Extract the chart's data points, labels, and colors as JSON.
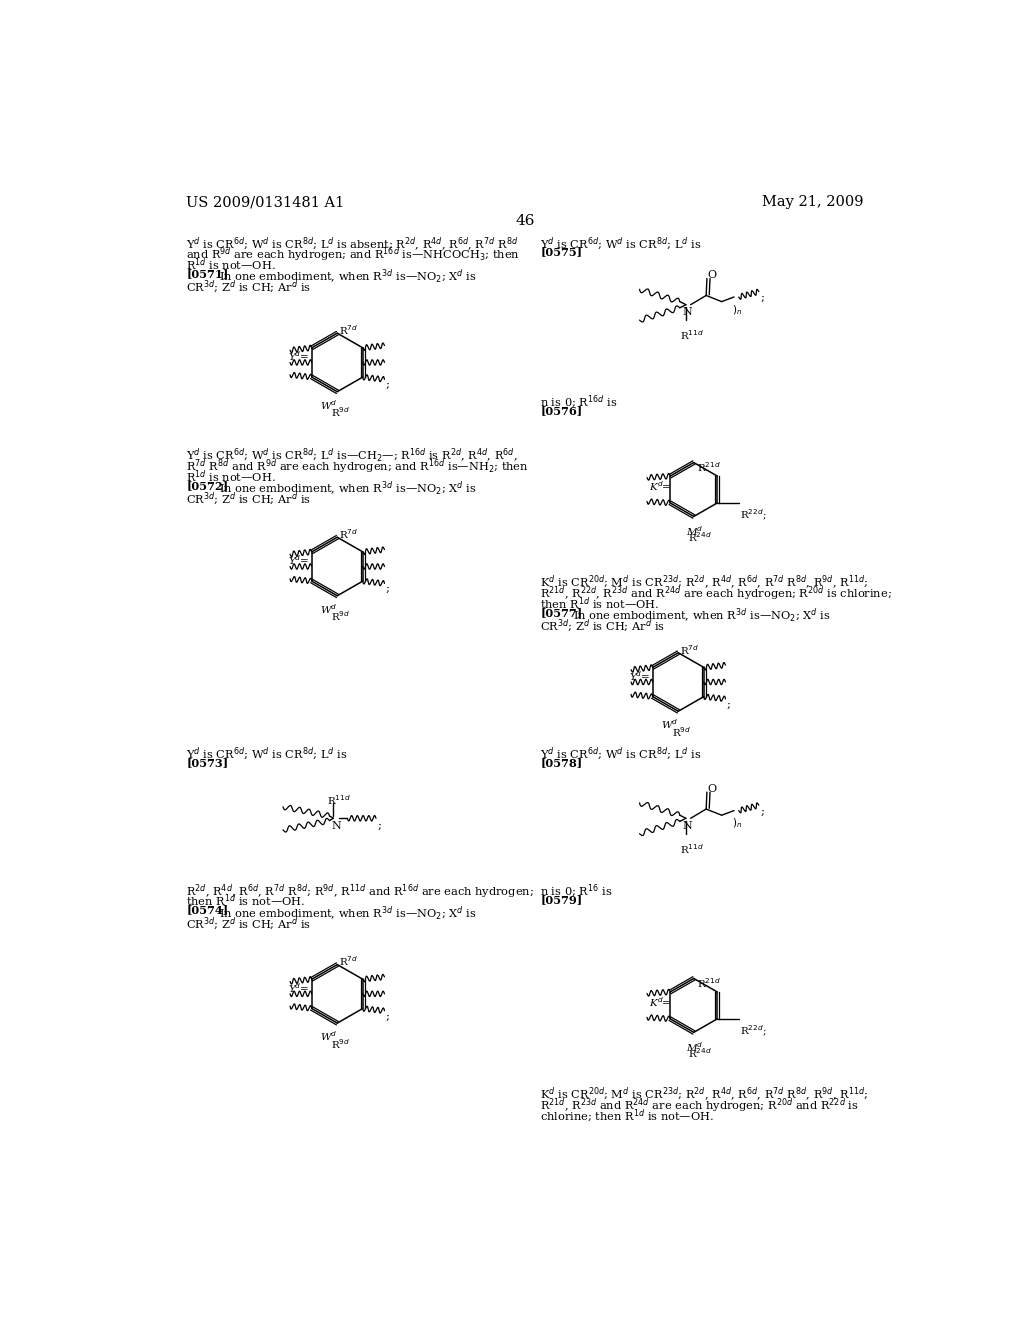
{
  "background_color": "#ffffff",
  "header_left": "US 2009/0131481 A1",
  "header_right": "May 21, 2009",
  "page_number": "46"
}
